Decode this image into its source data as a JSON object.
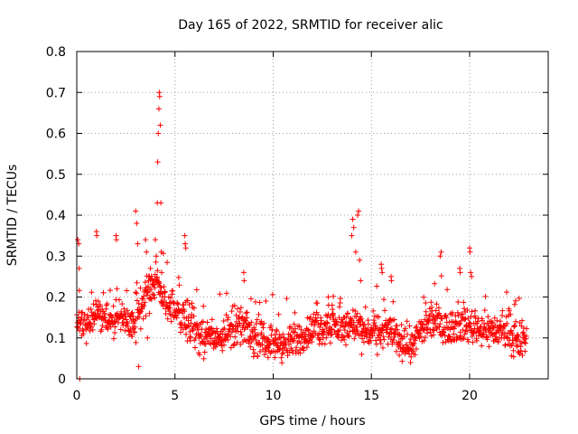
{
  "chart_data": {
    "type": "scatter",
    "title": "Day 165 of 2022, SRMTID for receiver alic",
    "xlabel": "GPS time / hours",
    "ylabel": "SRMTID / TECUs",
    "xlim": [
      0,
      24
    ],
    "ylim": [
      0,
      0.8
    ],
    "xticks": [
      0,
      5,
      10,
      15,
      20
    ],
    "xtick_labels": [
      "0",
      "5",
      "10",
      "15",
      "20"
    ],
    "yticks": [
      0,
      0.1,
      0.2,
      0.3,
      0.4,
      0.5,
      0.6,
      0.7,
      0.8
    ],
    "ytick_labels": [
      "0",
      "0.1",
      "0.2",
      "0.3",
      "0.4",
      "0.5",
      "0.6",
      "0.7",
      "0.8"
    ],
    "grid": true,
    "marker": "+",
    "color": "#ff0000",
    "series": [
      {
        "name": "SRMTID",
        "x_start": 0.0,
        "x_end": 22.9,
        "profile_x": [
          0,
          0.5,
          1,
          1.5,
          2,
          2.5,
          3,
          3.4,
          3.8,
          4.1,
          4.4,
          5,
          5.5,
          6,
          6.5,
          7,
          8,
          8.5,
          9,
          10,
          10.5,
          11,
          12,
          13,
          13.5,
          14,
          14.5,
          15,
          16,
          16.5,
          17,
          17.5,
          18,
          19,
          20,
          21,
          22,
          22.5,
          22.9
        ],
        "profile_y": [
          0.13,
          0.13,
          0.16,
          0.14,
          0.15,
          0.14,
          0.13,
          0.19,
          0.22,
          0.24,
          0.2,
          0.16,
          0.15,
          0.12,
          0.1,
          0.1,
          0.12,
          0.13,
          0.1,
          0.09,
          0.08,
          0.09,
          0.12,
          0.13,
          0.12,
          0.14,
          0.12,
          0.11,
          0.12,
          0.09,
          0.08,
          0.11,
          0.14,
          0.13,
          0.13,
          0.12,
          0.11,
          0.08,
          0.1
        ],
        "spread": 0.045,
        "count": 1400,
        "outliers_x": [
          0.05,
          0.1,
          0.12,
          0.15,
          1.0,
          1.02,
          2.0,
          2.02,
          3.0,
          3.05,
          3.1,
          3.15,
          3.5,
          3.55,
          3.6,
          3.7,
          3.75,
          4.0,
          4.05,
          4.1,
          4.12,
          4.15,
          4.18,
          4.2,
          4.22,
          4.25,
          4.28,
          4.3,
          4.32,
          5.5,
          5.52,
          5.55,
          8.5,
          8.52,
          12.8,
          12.82,
          13.0,
          13.02,
          13.05,
          14.0,
          14.05,
          14.1,
          14.2,
          14.3,
          14.35,
          14.4,
          14.45,
          14.5,
          15.5,
          15.52,
          15.55,
          16.0,
          16.02,
          18.5,
          18.55,
          19.5,
          19.52,
          20.0,
          20.02,
          20.05,
          20.1,
          22.3,
          22.35
        ],
        "outliers_y": [
          0.34,
          0.33,
          0.27,
          0.0,
          0.36,
          0.35,
          0.35,
          0.34,
          0.41,
          0.38,
          0.33,
          0.03,
          0.34,
          0.31,
          0.1,
          0.25,
          0.27,
          0.34,
          0.3,
          0.43,
          0.53,
          0.6,
          0.66,
          0.7,
          0.69,
          0.62,
          0.43,
          0.31,
          0.26,
          0.35,
          0.33,
          0.32,
          0.26,
          0.24,
          0.2,
          0.18,
          0.18,
          0.17,
          0.16,
          0.35,
          0.39,
          0.37,
          0.31,
          0.4,
          0.41,
          0.29,
          0.24,
          0.06,
          0.28,
          0.27,
          0.26,
          0.25,
          0.24,
          0.3,
          0.31,
          0.27,
          0.26,
          0.32,
          0.31,
          0.26,
          0.25,
          0.13,
          0.14
        ]
      }
    ]
  }
}
